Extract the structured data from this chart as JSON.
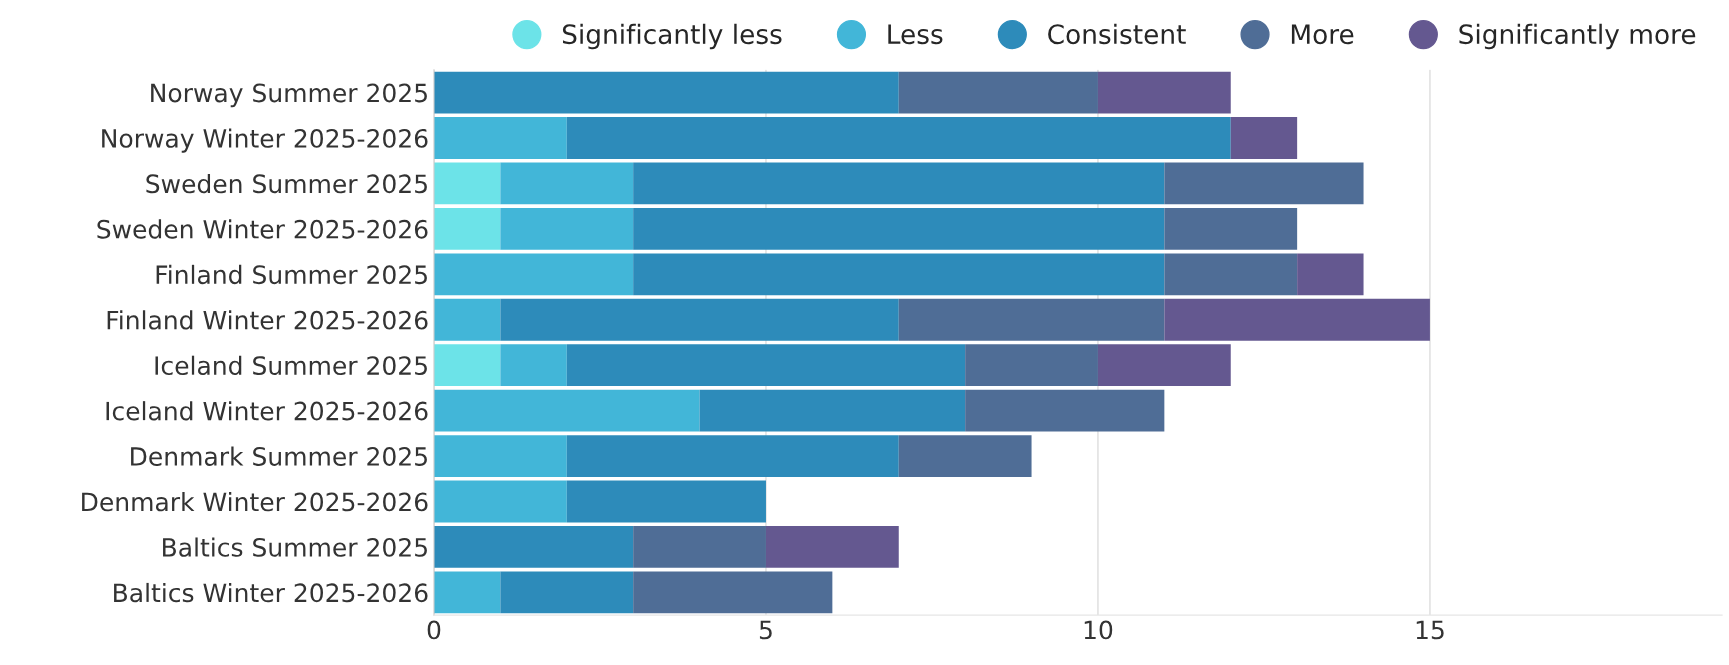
{
  "chart_data": {
    "type": "bar",
    "orientation": "horizontal",
    "stacked": true,
    "categories": [
      "Norway Summer 2025",
      "Norway Winter 2025-2026",
      "Sweden Summer 2025",
      "Sweden Winter 2025-2026",
      "Finland Summer 2025",
      "Finland Winter 2025-2026",
      "Iceland Summer 2025",
      "Iceland Winter 2025-2026",
      "Denmark Summer 2025",
      "Denmark Winter 2025-2026",
      "Baltics Summer 2025",
      "Baltics Winter 2025-2026"
    ],
    "series": [
      {
        "name": "Significantly less",
        "color": "#6ce3e8",
        "values": [
          0,
          0,
          1,
          1,
          0,
          0,
          1,
          0,
          0,
          0,
          0,
          0
        ]
      },
      {
        "name": "Less",
        "color": "#42b6d8",
        "values": [
          0,
          2,
          2,
          2,
          3,
          1,
          1,
          4,
          2,
          2,
          0,
          1
        ]
      },
      {
        "name": "Consistent",
        "color": "#2d8bba",
        "values": [
          7,
          10,
          8,
          8,
          8,
          6,
          6,
          4,
          5,
          3,
          3,
          2
        ]
      },
      {
        "name": "More",
        "color": "#4f6d96",
        "values": [
          3,
          0,
          3,
          2,
          2,
          4,
          2,
          3,
          2,
          0,
          2,
          3
        ]
      },
      {
        "name": "Significantly more",
        "color": "#645890",
        "values": [
          2,
          1,
          0,
          0,
          1,
          4,
          2,
          0,
          0,
          0,
          2,
          0
        ]
      }
    ],
    "xlim": [
      0,
      19.4
    ],
    "xticks": [
      0,
      5,
      10,
      15
    ],
    "grid": "x",
    "legend": "top right",
    "marker": "circle"
  }
}
